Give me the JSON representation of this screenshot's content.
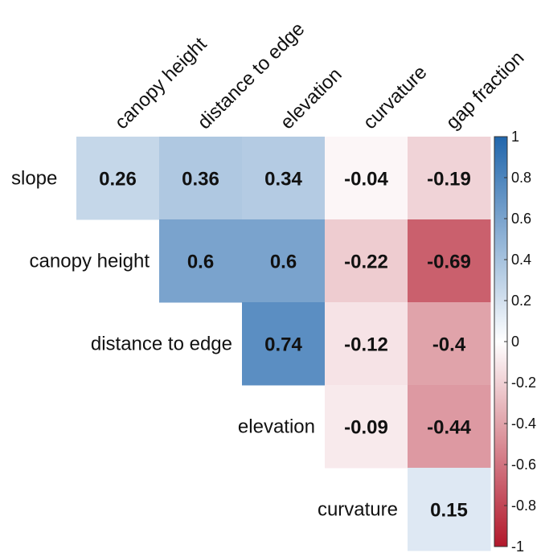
{
  "chart_data": {
    "type": "heatmap",
    "subtype": "upper-triangular correlation matrix",
    "columns": [
      "canopy height",
      "distance to edge",
      "elevation",
      "curvature",
      "gap fraction"
    ],
    "rows": [
      "slope",
      "canopy height",
      "distance to edge",
      "elevation",
      "curvature"
    ],
    "values": [
      [
        0.26,
        0.36,
        0.34,
        -0.04,
        -0.19
      ],
      [
        null,
        0.6,
        0.6,
        -0.22,
        -0.69
      ],
      [
        null,
        null,
        0.74,
        -0.12,
        -0.4
      ],
      [
        null,
        null,
        null,
        -0.09,
        -0.44
      ],
      [
        null,
        null,
        null,
        null,
        0.15
      ]
    ],
    "value_labels": [
      [
        "0.26",
        "0.36",
        "0.34",
        "-0.04",
        "-0.19"
      ],
      [
        null,
        "0.6",
        "0.6",
        "-0.22",
        "-0.69"
      ],
      [
        null,
        null,
        "0.74",
        "-0.12",
        "-0.4"
      ],
      [
        null,
        null,
        null,
        "-0.09",
        "-0.44"
      ],
      [
        null,
        null,
        null,
        null,
        "0.15"
      ]
    ],
    "colorbar": {
      "range": [
        -1,
        1
      ],
      "ticks": [
        "1",
        "0.8",
        "0.6",
        "0.4",
        "0.2",
        "0",
        "-0.2",
        "-0.4",
        "-0.6",
        "-0.8",
        "-1"
      ],
      "tick_values": [
        1,
        0.8,
        0.6,
        0.4,
        0.2,
        0,
        -0.2,
        -0.4,
        -0.6,
        -0.8,
        -1
      ],
      "colors": {
        "positive": "#2166ac",
        "neutral": "#ffffff",
        "negative": "#b2182b"
      },
      "placement": "right"
    },
    "title": ""
  }
}
